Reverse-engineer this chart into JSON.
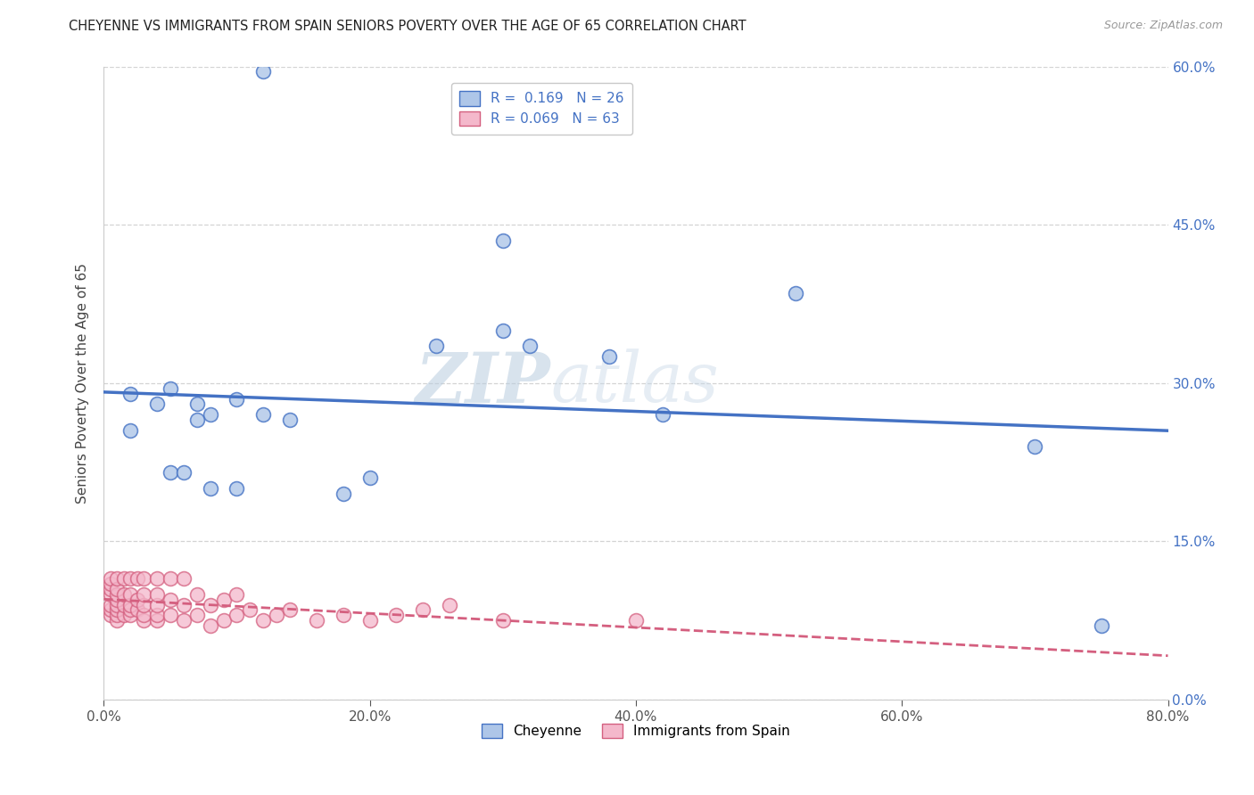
{
  "title": "CHEYENNE VS IMMIGRANTS FROM SPAIN SENIORS POVERTY OVER THE AGE OF 65 CORRELATION CHART",
  "source": "Source: ZipAtlas.com",
  "ylabel": "Seniors Poverty Over the Age of 65",
  "legend_labels": [
    "Cheyenne",
    "Immigrants from Spain"
  ],
  "r_cheyenne": 0.169,
  "n_cheyenne": 26,
  "r_spain": 0.069,
  "n_spain": 63,
  "xlim": [
    0.0,
    0.8
  ],
  "ylim": [
    0.0,
    0.6
  ],
  "xticks": [
    0.0,
    0.2,
    0.4,
    0.6,
    0.8
  ],
  "yticks": [
    0.0,
    0.15,
    0.3,
    0.45,
    0.6
  ],
  "color_cheyenne": "#aec6e8",
  "color_spain": "#f4b8cb",
  "color_line_cheyenne": "#4472c4",
  "color_line_spain": "#d45f7f",
  "watermark_zip": "ZIP",
  "watermark_atlas": "atlas",
  "cheyenne_x": [
    0.12,
    0.3,
    0.02,
    0.02,
    0.04,
    0.05,
    0.07,
    0.07,
    0.08,
    0.1,
    0.12,
    0.14,
    0.18,
    0.2,
    0.25,
    0.3,
    0.52,
    0.7,
    0.75,
    0.32,
    0.38,
    0.42,
    0.08,
    0.05,
    0.06,
    0.1
  ],
  "cheyenne_y": [
    0.595,
    0.435,
    0.29,
    0.255,
    0.28,
    0.295,
    0.28,
    0.265,
    0.27,
    0.285,
    0.27,
    0.265,
    0.195,
    0.21,
    0.335,
    0.35,
    0.385,
    0.24,
    0.07,
    0.335,
    0.325,
    0.27,
    0.2,
    0.215,
    0.215,
    0.2
  ],
  "spain_x": [
    0.005,
    0.005,
    0.005,
    0.005,
    0.005,
    0.005,
    0.005,
    0.01,
    0.01,
    0.01,
    0.01,
    0.01,
    0.01,
    0.01,
    0.01,
    0.015,
    0.015,
    0.015,
    0.015,
    0.02,
    0.02,
    0.02,
    0.02,
    0.02,
    0.025,
    0.025,
    0.025,
    0.03,
    0.03,
    0.03,
    0.03,
    0.03,
    0.04,
    0.04,
    0.04,
    0.04,
    0.04,
    0.05,
    0.05,
    0.05,
    0.06,
    0.06,
    0.06,
    0.07,
    0.07,
    0.08,
    0.08,
    0.09,
    0.09,
    0.1,
    0.1,
    0.11,
    0.12,
    0.13,
    0.14,
    0.16,
    0.18,
    0.2,
    0.22,
    0.24,
    0.26,
    0.3,
    0.4
  ],
  "spain_y": [
    0.08,
    0.085,
    0.09,
    0.1,
    0.105,
    0.11,
    0.115,
    0.075,
    0.08,
    0.085,
    0.09,
    0.095,
    0.1,
    0.105,
    0.115,
    0.08,
    0.09,
    0.1,
    0.115,
    0.08,
    0.085,
    0.09,
    0.1,
    0.115,
    0.085,
    0.095,
    0.115,
    0.075,
    0.08,
    0.09,
    0.1,
    0.115,
    0.075,
    0.08,
    0.09,
    0.1,
    0.115,
    0.08,
    0.095,
    0.115,
    0.075,
    0.09,
    0.115,
    0.08,
    0.1,
    0.07,
    0.09,
    0.075,
    0.095,
    0.08,
    0.1,
    0.085,
    0.075,
    0.08,
    0.085,
    0.075,
    0.08,
    0.075,
    0.08,
    0.085,
    0.09,
    0.075,
    0.075
  ],
  "background_color": "#ffffff",
  "grid_color": "#c8c8c8"
}
